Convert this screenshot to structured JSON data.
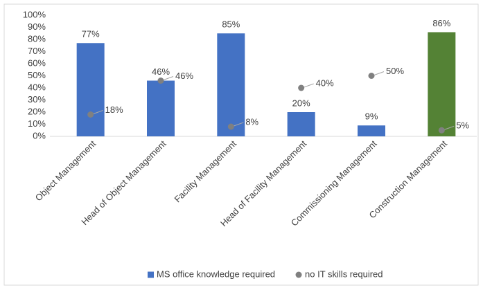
{
  "chart_data": {
    "type": "bar",
    "categories": [
      "Object Management",
      "Head of Object Management",
      "Facility Management",
      "Head of Facility Management",
      "Commissioning Management",
      "Construction Management"
    ],
    "series": [
      {
        "name": "MS office knowledge required",
        "type": "bar",
        "color": "#4472c4",
        "colors": [
          "#4472c4",
          "#4472c4",
          "#4472c4",
          "#4472c4",
          "#4472c4",
          "#548235"
        ],
        "values": [
          77,
          46,
          85,
          20,
          9,
          86
        ],
        "value_labels": [
          "77%",
          "46%",
          "85%",
          "20%",
          "9%",
          "86%"
        ]
      },
      {
        "name": "no IT skills required",
        "type": "scatter",
        "color": "#808080",
        "values": [
          18,
          46,
          8,
          40,
          50,
          5
        ],
        "value_labels": [
          "18%",
          "46%",
          "8%",
          "40%",
          "50%",
          "5%"
        ]
      }
    ],
    "ylim": [
      0,
      100
    ],
    "yticks": [
      {
        "value": 0,
        "label": "0%"
      },
      {
        "value": 10,
        "label": "10%"
      },
      {
        "value": 20,
        "label": "20%"
      },
      {
        "value": 30,
        "label": "30%"
      },
      {
        "value": 40,
        "label": "40%"
      },
      {
        "value": 50,
        "label": "50%"
      },
      {
        "value": 60,
        "label": "60%"
      },
      {
        "value": 70,
        "label": "70%"
      },
      {
        "value": 80,
        "label": "80%"
      },
      {
        "value": 90,
        "label": "90%"
      },
      {
        "value": 100,
        "label": "100%"
      }
    ],
    "grid": false,
    "legend": "bottom"
  }
}
